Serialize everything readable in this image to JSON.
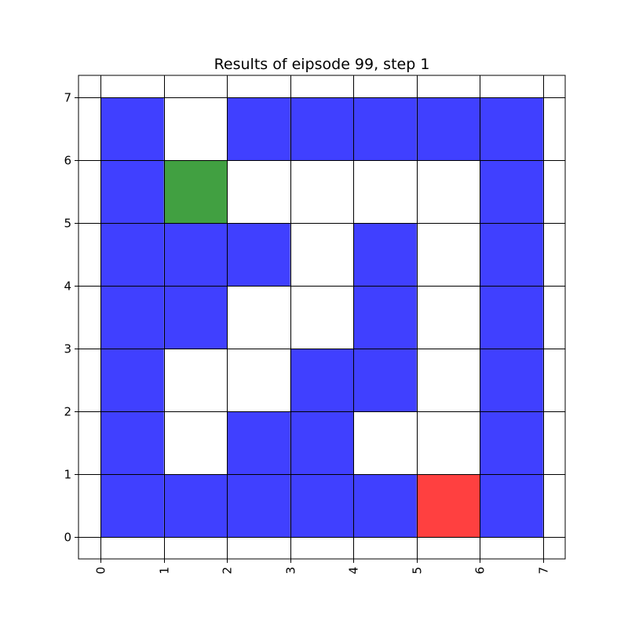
{
  "chart_data": {
    "type": "heatmap",
    "title": "Results of eipsode 99, step 1",
    "xlabel": "",
    "ylabel": "",
    "xlim": [
      -0.35,
      7.35
    ],
    "ylim": [
      -0.35,
      7.35
    ],
    "x_ticks": [
      "0",
      "1",
      "2",
      "3",
      "4",
      "5",
      "6",
      "7"
    ],
    "y_ticks": [
      "0",
      "1",
      "2",
      "3",
      "4",
      "5",
      "6",
      "7"
    ],
    "grid": true,
    "colors": {
      "wall": "#4040ff",
      "agent": "#41a041",
      "goal": "#ff4040"
    },
    "cells": [
      {
        "x": 0,
        "y": 6,
        "kind": "wall"
      },
      {
        "x": 2,
        "y": 6,
        "kind": "wall"
      },
      {
        "x": 3,
        "y": 6,
        "kind": "wall"
      },
      {
        "x": 4,
        "y": 6,
        "kind": "wall"
      },
      {
        "x": 5,
        "y": 6,
        "kind": "wall"
      },
      {
        "x": 6,
        "y": 6,
        "kind": "wall"
      },
      {
        "x": 0,
        "y": 5,
        "kind": "wall"
      },
      {
        "x": 1,
        "y": 5,
        "kind": "agent"
      },
      {
        "x": 6,
        "y": 5,
        "kind": "wall"
      },
      {
        "x": 0,
        "y": 4,
        "kind": "wall"
      },
      {
        "x": 1,
        "y": 4,
        "kind": "wall"
      },
      {
        "x": 2,
        "y": 4,
        "kind": "wall"
      },
      {
        "x": 4,
        "y": 4,
        "kind": "wall"
      },
      {
        "x": 6,
        "y": 4,
        "kind": "wall"
      },
      {
        "x": 0,
        "y": 3,
        "kind": "wall"
      },
      {
        "x": 1,
        "y": 3,
        "kind": "wall"
      },
      {
        "x": 4,
        "y": 3,
        "kind": "wall"
      },
      {
        "x": 6,
        "y": 3,
        "kind": "wall"
      },
      {
        "x": 0,
        "y": 2,
        "kind": "wall"
      },
      {
        "x": 3,
        "y": 2,
        "kind": "wall"
      },
      {
        "x": 4,
        "y": 2,
        "kind": "wall"
      },
      {
        "x": 6,
        "y": 2,
        "kind": "wall"
      },
      {
        "x": 0,
        "y": 1,
        "kind": "wall"
      },
      {
        "x": 2,
        "y": 1,
        "kind": "wall"
      },
      {
        "x": 3,
        "y": 1,
        "kind": "wall"
      },
      {
        "x": 6,
        "y": 1,
        "kind": "wall"
      },
      {
        "x": 0,
        "y": 0,
        "kind": "wall"
      },
      {
        "x": 1,
        "y": 0,
        "kind": "wall"
      },
      {
        "x": 2,
        "y": 0,
        "kind": "wall"
      },
      {
        "x": 3,
        "y": 0,
        "kind": "wall"
      },
      {
        "x": 4,
        "y": 0,
        "kind": "wall"
      },
      {
        "x": 5,
        "y": 0,
        "kind": "goal"
      },
      {
        "x": 6,
        "y": 0,
        "kind": "wall"
      }
    ]
  }
}
